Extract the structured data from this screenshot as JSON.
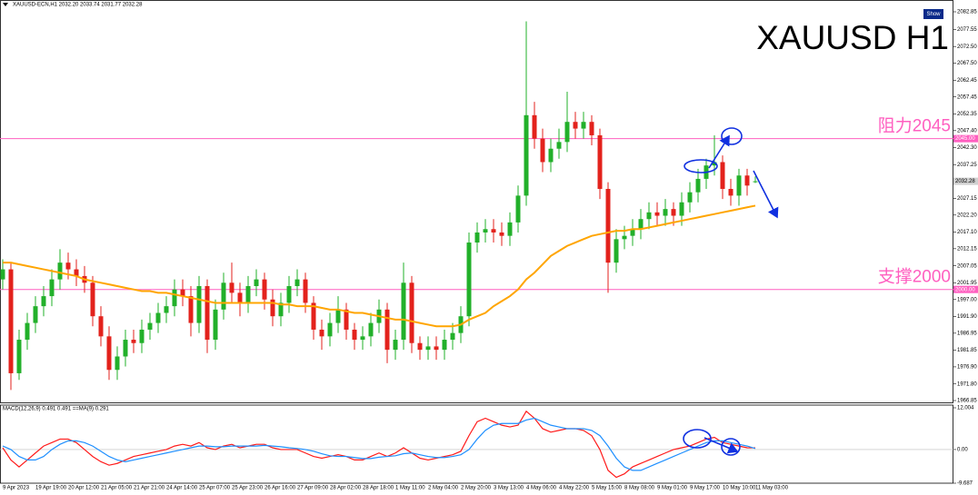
{
  "chart_data": [
    {
      "type": "candlestick",
      "title": "XAUUSD H1",
      "subtitle": "XAUUSD-ECN,H1  2032.20 2033.74 2031.77 2032.28",
      "show_button": "Show",
      "categories": [
        "9 Apr 2023",
        null,
        null,
        null,
        "19 Apr 19:00",
        null,
        null,
        null,
        "20 Apr 12:00",
        null,
        null,
        null,
        "21 Apr 05:00",
        null,
        null,
        null,
        "21 Apr 21:00",
        null,
        null,
        null,
        "24 Apr 14:00",
        null,
        null,
        null,
        "25 Apr 07:00",
        null,
        null,
        null,
        "25 Apr 23:00",
        null,
        null,
        null,
        "26 Apr 16:00",
        null,
        null,
        null,
        "27 Apr 09:00",
        null,
        null,
        null,
        "28 Apr 02:00",
        null,
        null,
        null,
        "28 Apr 18:00",
        null,
        null,
        null,
        "1 May 11:00",
        null,
        null,
        null,
        "2 May 04:00",
        null,
        null,
        null,
        "2 May 20:00",
        null,
        null,
        null,
        "3 May 13:00",
        null,
        null,
        null,
        "4 May 06:00",
        null,
        null,
        null,
        "4 May 22:00",
        null,
        null,
        null,
        "5 May 15:00",
        null,
        null,
        null,
        "8 May 08:00",
        null,
        null,
        null,
        "9 May 01:00",
        null,
        null,
        null,
        "9 May 17:00",
        null,
        null,
        null,
        "10 May 10:00",
        null,
        null,
        null,
        "11 May 03:00"
      ],
      "open": [
        2003,
        2006,
        1975,
        1985,
        1990,
        1995,
        1998,
        2003,
        2008,
        2006,
        2004,
        2002,
        1992,
        1986,
        1976,
        1980,
        1985,
        1984,
        1988,
        1990,
        1993,
        1995,
        2000,
        1998,
        1990,
        2001,
        1985,
        1994,
        2002,
        1999,
        1996,
        2001,
        2003,
        1997,
        1992,
        1996,
        2001,
        2003,
        1996,
        1988,
        1986,
        1990,
        1994,
        1988,
        1985,
        1986,
        1990,
        1994,
        1982,
        1985,
        2002,
        1984,
        1982,
        1983,
        1982,
        1985,
        1987,
        1992,
        2014,
        2017,
        2018,
        2017,
        2016,
        2020,
        2028,
        2052,
        2045,
        2038,
        2042,
        2044,
        2050,
        2048,
        2050,
        2046,
        2030,
        2008,
        2015,
        2016,
        2018,
        2021,
        2023,
        2022,
        2024,
        2022,
        2026,
        2029,
        2033,
        2037,
        2038,
        2030,
        2028,
        2034,
        2032.2
      ],
      "high": [
        2009,
        2008,
        1988,
        1993,
        1998,
        2001,
        2006,
        2012,
        2011,
        2009,
        2007,
        2004,
        1995,
        1989,
        1983,
        1988,
        1988,
        1991,
        1993,
        1996,
        1998,
        2003,
        2003,
        2001,
        2004,
        2003,
        1997,
        2005,
        2008,
        2002,
        2004,
        2006,
        2005,
        2000,
        1999,
        2004,
        2006,
        2005,
        1998,
        1991,
        1993,
        1998,
        1996,
        1990,
        1989,
        1993,
        1997,
        1996,
        1988,
        2008,
        2004,
        1986,
        1986,
        1986,
        1988,
        1990,
        1995,
        2017,
        2020,
        2021,
        2021,
        2020,
        2023,
        2031,
        2080,
        2056,
        2048,
        2045,
        2048,
        2059,
        2053,
        2053,
        2052,
        2048,
        2032,
        2018,
        2019,
        2021,
        2024,
        2026,
        2026,
        2027,
        2026,
        2029,
        2032,
        2036,
        2039,
        2046,
        2040,
        2033,
        2036,
        2036,
        2033.74
      ],
      "low": [
        2000,
        1970,
        1973,
        1982,
        1987,
        1992,
        1995,
        2000,
        2003,
        2001,
        1999,
        1989,
        1983,
        1973,
        1973,
        1977,
        1981,
        1981,
        1985,
        1987,
        1990,
        1992,
        1995,
        1986,
        1987,
        1981,
        1982,
        1991,
        1996,
        1992,
        1993,
        1998,
        1994,
        1989,
        1989,
        1993,
        1998,
        1993,
        1985,
        1982,
        1983,
        1987,
        1985,
        1982,
        1982,
        1983,
        1987,
        1978,
        1979,
        1982,
        1981,
        1979,
        1979,
        1979,
        1979,
        1982,
        1984,
        1989,
        2011,
        2014,
        2014,
        2013,
        2013,
        2017,
        2025,
        2042,
        2035,
        2035,
        2039,
        2041,
        2045,
        2045,
        2043,
        2027,
        1999,
        2005,
        2012,
        2013,
        2015,
        2018,
        2019,
        2019,
        2019,
        2019,
        2023,
        2026,
        2030,
        2034,
        2027,
        2025,
        2025,
        2028,
        2031.77
      ],
      "close": [
        2006,
        1975,
        1985,
        1990,
        1995,
        1998,
        2003,
        2008,
        2006,
        2004,
        2002,
        1992,
        1986,
        1976,
        1980,
        1985,
        1984,
        1988,
        1990,
        1993,
        1995,
        2000,
        1998,
        1990,
        2001,
        1985,
        1994,
        2002,
        1999,
        1996,
        2001,
        2003,
        1997,
        1992,
        1996,
        2001,
        2003,
        1996,
        1988,
        1986,
        1990,
        1994,
        1988,
        1985,
        1986,
        1990,
        1994,
        1982,
        1985,
        2002,
        1984,
        1982,
        1983,
        1982,
        1985,
        1987,
        1992,
        2014,
        2017,
        2018,
        2017,
        2016,
        2020,
        2028,
        2052,
        2045,
        2038,
        2042,
        2044,
        2050,
        2048,
        2050,
        2046,
        2030,
        2008,
        2015,
        2016,
        2018,
        2021,
        2023,
        2022,
        2024,
        2022,
        2026,
        2029,
        2033,
        2037,
        2038,
        2030,
        2028,
        2034,
        2031,
        2032.28
      ],
      "up_color": "#22b02a",
      "down_color": "#e3221c",
      "ma": {
        "color": "#ffa500",
        "values": [
          2008,
          2008,
          2007.5,
          2007,
          2006.5,
          2006,
          2005.5,
          2005,
          2004.5,
          2004,
          2003,
          2002.5,
          2002,
          2001.5,
          2001,
          2000.5,
          2000,
          1999.5,
          1999.5,
          1999,
          1999,
          1998.5,
          1998,
          1997.5,
          1997,
          1996.5,
          1996,
          1996,
          1996,
          1996,
          1996,
          1996,
          1996,
          1996,
          1995.5,
          1995.5,
          1995,
          1995,
          1995,
          1994.5,
          1994,
          1994,
          1993.5,
          1993,
          1993,
          1992.5,
          1992,
          1991.5,
          1991,
          1991,
          1990.5,
          1990,
          1989.5,
          1989,
          1989,
          1989,
          1989.5,
          1991,
          1992,
          1993,
          1995,
          1996.5,
          1998,
          2000,
          2003,
          2005,
          2007.5,
          2010,
          2011.5,
          2013,
          2014,
          2015,
          2016,
          2016.5,
          2017,
          2017.5,
          2017.5,
          2018,
          2018,
          2018.5,
          2019,
          2019.5,
          2020,
          2020.5,
          2021,
          2021.5,
          2022,
          2022.5,
          2023,
          2023.5,
          2024,
          2024.5,
          2025
        ]
      },
      "levels": [
        {
          "value": 2045,
          "label": "2045.00",
          "text": "阻力2045",
          "color": "#ff5fc0"
        },
        {
          "value": 2000,
          "label": "2000.00",
          "text": "支撑2000",
          "color": "#ff5fc0"
        }
      ],
      "ylim": [
        1966.85,
        2082.85
      ],
      "yticks": [
        2082.85,
        2077.55,
        {
          "value": 2072.5,
          "label": "2072.50"
        },
        {
          "value": 2067.5,
          "label": "2067.50"
        },
        2062.45,
        2057.45,
        2052.35,
        {
          "value": 2047.4,
          "label": "2047.40"
        },
        {
          "value": 2042.3,
          "label": "2042.30"
        },
        2037.25,
        {
          "value": 2032.2,
          "label": "2032.20"
        },
        2027.15,
        {
          "value": 2022.2,
          "label": "2022.20"
        },
        {
          "value": 2017.1,
          "label": "2017.10"
        },
        2012.15,
        2007.05,
        2001.95,
        {
          "value": 1997,
          "label": "1997.00"
        },
        {
          "value": 1991.9,
          "label": "1991.90"
        },
        1986.95,
        1981.85,
        {
          "value": 1976.9,
          "label": "1976.90"
        },
        {
          "value": 1971.8,
          "label": "1971.80"
        },
        1966.85
      ]
    },
    {
      "type": "line",
      "title": "MACD(12,26,9) 0.491 0.491 ==MA(9) 0.291",
      "series": [
        {
          "color": "#ff1a1a",
          "values": [
            0.5,
            -3,
            -5,
            -3,
            -1,
            1,
            2,
            3,
            3,
            2,
            0,
            -2,
            -3.5,
            -4.5,
            -4,
            -3,
            -2,
            -1.5,
            -1,
            -0.5,
            0,
            1,
            1.5,
            1,
            2,
            0.5,
            0,
            1,
            1.5,
            0.5,
            1,
            1.5,
            1.5,
            0.5,
            0,
            0,
            0,
            -1,
            -2,
            -2.5,
            -2,
            -1.5,
            -2,
            -3,
            -3,
            -2,
            -1,
            -2,
            -1,
            0.5,
            -1,
            -2.5,
            -3,
            -2.5,
            -2,
            -1.5,
            -0.5,
            4,
            8,
            9,
            8,
            7,
            6.5,
            7,
            11,
            9,
            6,
            5,
            5.5,
            6,
            6,
            5.5,
            4,
            0,
            -6,
            -8,
            -7,
            -5,
            -4,
            -3,
            -2,
            -1,
            0,
            0.5,
            1,
            2,
            3,
            3.5,
            2,
            1.5,
            1,
            0.5,
            0.491
          ]
        },
        {
          "color": "#1e8fff",
          "values": [
            1,
            0,
            -2,
            -3,
            -3,
            -2,
            0,
            1.5,
            2.5,
            2.5,
            2,
            1,
            -0.5,
            -2,
            -3,
            -3.5,
            -3,
            -2.5,
            -2,
            -1.5,
            -1,
            -0.5,
            0,
            0.5,
            1,
            1,
            0.8,
            0.8,
            1,
            1,
            1,
            1,
            1.2,
            1,
            0.8,
            0.5,
            0.3,
            0,
            -0.5,
            -1.2,
            -1.8,
            -2,
            -2,
            -2.3,
            -2.6,
            -2.6,
            -2.2,
            -2,
            -1.8,
            -1.2,
            -1,
            -1.5,
            -2,
            -2.3,
            -2.3,
            -2,
            -1.5,
            0,
            3,
            5.5,
            7,
            7.5,
            7.5,
            7.5,
            8.5,
            9,
            8,
            7,
            6.5,
            6,
            6,
            6,
            5.5,
            4,
            1,
            -2.5,
            -5,
            -6,
            -6,
            -5,
            -4,
            -3,
            -2,
            -1,
            0,
            1,
            2,
            2.5,
            2.5,
            2,
            1.5,
            1,
            0.291
          ]
        }
      ],
      "ylim": [
        -9.687,
        12.004
      ],
      "yticks": [
        12.004,
        {
          "value": 0,
          "label": "0.00"
        },
        -9.687
      ]
    }
  ]
}
